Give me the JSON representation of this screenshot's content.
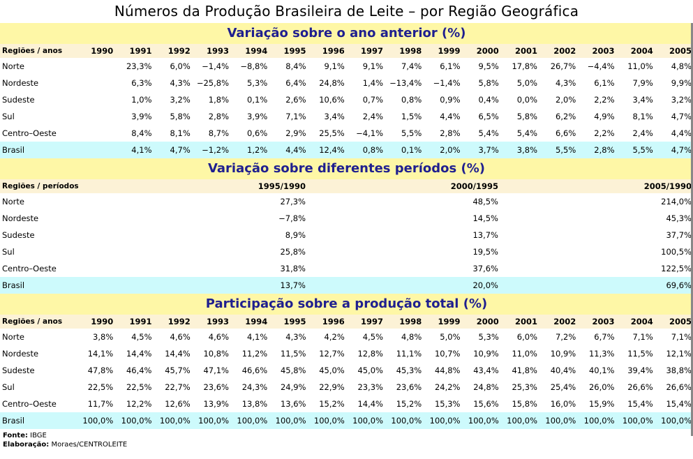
{
  "title": "Números da Produção Brasileira de Leite – por Região Geográfica",
  "section1": {
    "title": "Variação sobre o ano anterior (%)",
    "header_label": "Regiões / anos",
    "years": [
      "1990",
      "1991",
      "1992",
      "1993",
      "1994",
      "1995",
      "1996",
      "1997",
      "1998",
      "1999",
      "2000",
      "2001",
      "2002",
      "2003",
      "2004",
      "2005"
    ],
    "rows": [
      {
        "region": "Norte",
        "values": [
          "",
          "23,3%",
          "6,0%",
          "−1,4%",
          "−8,8%",
          "8,4%",
          "9,1%",
          "9,1%",
          "7,4%",
          "6,1%",
          "9,5%",
          "17,8%",
          "26,7%",
          "−4,4%",
          "11,0%",
          "4,8%"
        ]
      },
      {
        "region": "Nordeste",
        "values": [
          "",
          "6,3%",
          "4,3%",
          "−25,8%",
          "5,3%",
          "6,4%",
          "24,8%",
          "1,4%",
          "−13,4%",
          "−1,4%",
          "5,8%",
          "5,0%",
          "4,3%",
          "6,1%",
          "7,9%",
          "9,9%"
        ]
      },
      {
        "region": "Sudeste",
        "values": [
          "",
          "1,0%",
          "3,2%",
          "1,8%",
          "0,1%",
          "2,6%",
          "10,6%",
          "0,7%",
          "0,8%",
          "0,9%",
          "0,4%",
          "0,0%",
          "2,0%",
          "2,2%",
          "3,4%",
          "3,2%"
        ]
      },
      {
        "region": "Sul",
        "values": [
          "",
          "3,9%",
          "5,8%",
          "2,8%",
          "3,9%",
          "7,1%",
          "3,4%",
          "2,4%",
          "1,5%",
          "4,4%",
          "6,5%",
          "5,8%",
          "6,2%",
          "4,9%",
          "8,1%",
          "4,7%"
        ]
      },
      {
        "region": "Centro–Oeste",
        "values": [
          "",
          "8,4%",
          "8,1%",
          "8,7%",
          "0,6%",
          "2,9%",
          "25,5%",
          "−4,1%",
          "5,5%",
          "2,8%",
          "5,4%",
          "5,4%",
          "6,6%",
          "2,2%",
          "2,4%",
          "4,4%"
        ]
      },
      {
        "region": "Brasil",
        "values": [
          "",
          "4,1%",
          "4,7%",
          "−1,2%",
          "1,2%",
          "4,4%",
          "12,4%",
          "0,8%",
          "0,1%",
          "2,0%",
          "3,7%",
          "3,8%",
          "5,5%",
          "2,8%",
          "5,5%",
          "4,7%"
        ]
      }
    ]
  },
  "section2": {
    "title": "Variação sobre diferentes períodos (%)",
    "header_label": "Regiões / períodos",
    "periods": [
      "1995/1990",
      "2000/1995",
      "2005/1990"
    ],
    "rows": [
      {
        "region": "Norte",
        "values": [
          "27,3%",
          "48,5%",
          "214,0%"
        ]
      },
      {
        "region": "Nordeste",
        "values": [
          "−7,8%",
          "14,5%",
          "45,3%"
        ]
      },
      {
        "region": "Sudeste",
        "values": [
          "8,9%",
          "13,7%",
          "37,7%"
        ]
      },
      {
        "region": "Sul",
        "values": [
          "25,8%",
          "19,5%",
          "100,5%"
        ]
      },
      {
        "region": "Centro–Oeste",
        "values": [
          "31,8%",
          "37,6%",
          "122,5%"
        ]
      },
      {
        "region": "Brasil",
        "values": [
          "13,7%",
          "20,0%",
          "69,6%"
        ]
      }
    ]
  },
  "section3": {
    "title": "Participação sobre a produção total (%)",
    "header_label": "Regiões / anos",
    "years": [
      "1990",
      "1991",
      "1992",
      "1993",
      "1994",
      "1995",
      "1996",
      "1997",
      "1998",
      "1999",
      "2000",
      "2001",
      "2002",
      "2003",
      "2004",
      "2005"
    ],
    "rows": [
      {
        "region": "Norte",
        "values": [
          "3,8%",
          "4,5%",
          "4,6%",
          "4,6%",
          "4,1%",
          "4,3%",
          "4,2%",
          "4,5%",
          "4,8%",
          "5,0%",
          "5,3%",
          "6,0%",
          "7,2%",
          "6,7%",
          "7,1%",
          "7,1%"
        ]
      },
      {
        "region": "Nordeste",
        "values": [
          "14,1%",
          "14,4%",
          "14,4%",
          "10,8%",
          "11,2%",
          "11,5%",
          "12,7%",
          "12,8%",
          "11,1%",
          "10,7%",
          "10,9%",
          "11,0%",
          "10,9%",
          "11,3%",
          "11,5%",
          "12,1%"
        ]
      },
      {
        "region": "Sudeste",
        "values": [
          "47,8%",
          "46,4%",
          "45,7%",
          "47,1%",
          "46,6%",
          "45,8%",
          "45,0%",
          "45,0%",
          "45,3%",
          "44,8%",
          "43,4%",
          "41,8%",
          "40,4%",
          "40,1%",
          "39,4%",
          "38,8%"
        ]
      },
      {
        "region": "Sul",
        "values": [
          "22,5%",
          "22,5%",
          "22,7%",
          "23,6%",
          "24,3%",
          "24,9%",
          "22,9%",
          "23,3%",
          "23,6%",
          "24,2%",
          "24,8%",
          "25,3%",
          "25,4%",
          "26,0%",
          "26,6%",
          "26,6%"
        ]
      },
      {
        "region": "Centro–Oeste",
        "values": [
          "11,7%",
          "12,2%",
          "12,6%",
          "13,9%",
          "13,8%",
          "13,6%",
          "15,2%",
          "14,4%",
          "15,2%",
          "15,3%",
          "15,6%",
          "15,8%",
          "16,0%",
          "15,9%",
          "15,4%",
          "15,4%"
        ]
      },
      {
        "region": "Brasil",
        "values": [
          "100,0%",
          "100,0%",
          "100,0%",
          "100,0%",
          "100,0%",
          "100,0%",
          "100,0%",
          "100,0%",
          "100,0%",
          "100,0%",
          "100,0%",
          "100,0%",
          "100,0%",
          "100,0%",
          "100,0%",
          "100,0%"
        ]
      }
    ]
  },
  "footer": {
    "source_label": "Fonte:",
    "source_value": "IBGE",
    "elab_label": "Elaboração:",
    "elab_value": "Moraes/CENTROLEITE"
  }
}
